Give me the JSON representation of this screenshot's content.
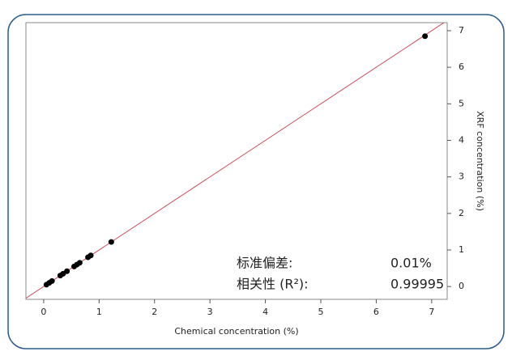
{
  "chart_data": {
    "type": "scatter",
    "x_label": "Chemical concentration (%)",
    "y_label": "XRF concentration (%)",
    "series": [
      {
        "color": "#000000",
        "x": [
          0.05,
          0.1,
          0.15,
          0.3,
          0.35,
          0.42,
          0.55,
          0.6,
          0.65,
          0.8,
          0.85,
          1.22,
          6.88
        ],
        "values": [
          0.05,
          0.1,
          0.15,
          0.3,
          0.35,
          0.42,
          0.55,
          0.6,
          0.65,
          0.8,
          0.85,
          1.22,
          6.85
        ]
      }
    ],
    "fit_line_color": "#d04a5a",
    "xlim": [
      -0.32,
      7.28
    ],
    "ylim": [
      -0.35,
      7.22
    ],
    "xticks": [
      0,
      1,
      2,
      3,
      4,
      5,
      6,
      7
    ],
    "yticks": [
      0,
      1,
      2,
      3,
      4,
      5,
      6,
      7
    ],
    "y_axis_side": "right",
    "stats": [
      {
        "label": "标准偏差:",
        "value": "0.01%"
      },
      {
        "label": "相关性 (R²):",
        "value": "0.99995"
      }
    ]
  }
}
